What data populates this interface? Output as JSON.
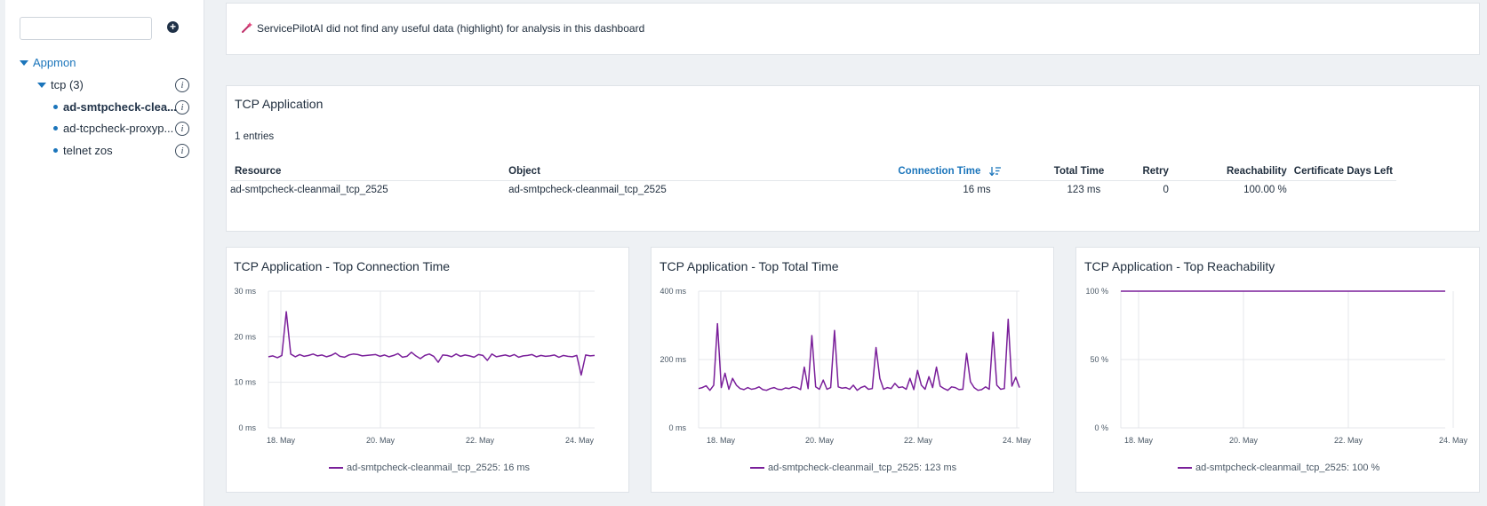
{
  "sidebar": {
    "search": {
      "placeholder": "",
      "value": ""
    },
    "add_label": "+",
    "tree": {
      "root": "Appmon",
      "group": "tcp (3)",
      "items": [
        {
          "label": "ad-smtpcheck-clea..."
        },
        {
          "label": "ad-tcpcheck-proxyp..."
        },
        {
          "label": "telnet zos"
        }
      ],
      "info_glyph": "i"
    }
  },
  "banner": {
    "icon": "magic-wand-icon",
    "text": "ServicePilotAI did not find any useful data (highlight) for analysis in this dashboard"
  },
  "tcp_table": {
    "title": "TCP Application",
    "entries": "1 entries",
    "columns": [
      "Resource",
      "Object",
      "Connection Time",
      "Total Time",
      "Retry",
      "Reachability",
      "Certificate Days Left"
    ],
    "sort_icon": "sort-desc-icon",
    "rows": [
      [
        "ad-smtpcheck-cleanmail_tcp_2525",
        "ad-smtpcheck-cleanmail_tcp_2525",
        "16 ms",
        "123 ms",
        "0",
        "100.00 %",
        ""
      ]
    ]
  },
  "colors": {
    "series": "#7a1f9a",
    "accent": "#1b75bb",
    "grid": "#e4e7eb"
  },
  "chart_data": [
    {
      "type": "line",
      "title": "TCP Application - Top Connection Time",
      "x_ticks": [
        "18. May",
        "20. May",
        "22. May",
        "24. May"
      ],
      "x_range": [
        "17.8 May",
        "25.6 May"
      ],
      "y_ticks": [
        "0 ms",
        "10 ms",
        "20 ms",
        "30 ms"
      ],
      "ylim": [
        0,
        30
      ],
      "grid": true,
      "legend_position": "bottom",
      "series": [
        {
          "name": "ad-smtpcheck-cleanmail_tcp_2525",
          "legend_label": "ad-smtpcheck-cleanmail_tcp_2525: 16 ms",
          "values": [
            15.6,
            15.8,
            15.4,
            15.9,
            25.5,
            16.2,
            15.6,
            16.1,
            15.7,
            15.9,
            16.2,
            15.8,
            16.0,
            15.6,
            15.9,
            16.4,
            15.7,
            15.5,
            16.0,
            16.2,
            16.1,
            15.8,
            15.9,
            16.0,
            16.1,
            15.7,
            16.0,
            15.6,
            15.9,
            16.3,
            15.5,
            15.7,
            16.6,
            15.8,
            15.2,
            15.9,
            16.2,
            15.7,
            14.4,
            16.0,
            15.9,
            15.6,
            16.2,
            15.7,
            16.0,
            15.8,
            15.5,
            16.1,
            15.9,
            14.8,
            16.2,
            15.6,
            15.8,
            16.0,
            15.7,
            16.1,
            15.5,
            15.8,
            15.9,
            16.1,
            15.6,
            15.9,
            15.7,
            15.8,
            16.0,
            15.5,
            15.9,
            15.7,
            15.6,
            15.9,
            11.6,
            16.0,
            15.8,
            15.9
          ]
        }
      ]
    },
    {
      "type": "line",
      "title": "TCP Application - Top Total Time",
      "x_ticks": [
        "18. May",
        "20. May",
        "22. May",
        "24. May"
      ],
      "x_range": [
        "17.8 May",
        "25.6 May"
      ],
      "y_ticks": [
        "0 ms",
        "200 ms",
        "400 ms"
      ],
      "ylim": [
        0,
        400
      ],
      "grid": true,
      "legend_position": "bottom",
      "series": [
        {
          "name": "ad-smtpcheck-cleanmail_tcp_2525",
          "legend_label": "ad-smtpcheck-cleanmail_tcp_2525: 123 ms",
          "values": [
            115,
            118,
            123,
            110,
            125,
            305,
            118,
            160,
            113,
            145,
            125,
            115,
            112,
            118,
            113,
            115,
            120,
            112,
            110,
            115,
            118,
            113,
            112,
            117,
            115,
            120,
            118,
            112,
            178,
            115,
            270,
            120,
            113,
            140,
            113,
            118,
            285,
            120,
            116,
            118,
            113,
            125,
            110,
            118,
            122,
            113,
            115,
            235,
            145,
            113,
            118,
            115,
            130,
            118,
            120,
            113,
            145,
            112,
            168,
            125,
            113,
            150,
            118,
            178,
            122,
            115,
            110,
            120,
            118,
            112,
            113,
            218,
            135,
            118,
            110,
            112,
            120,
            113,
            280,
            125,
            113,
            115,
            318,
            122,
            148,
            118
          ]
        }
      ]
    },
    {
      "type": "line",
      "title": "TCP Application - Top Reachability",
      "x_ticks": [
        "18. May",
        "20. May",
        "22. May",
        "24. May"
      ],
      "x_range": [
        "17.8 May",
        "25.6 May"
      ],
      "y_ticks": [
        "0 %",
        "50 %",
        "100 %"
      ],
      "ylim": [
        0,
        100
      ],
      "grid": true,
      "legend_position": "bottom",
      "series": [
        {
          "name": "ad-smtpcheck-cleanmail_tcp_2525",
          "legend_label": "ad-smtpcheck-cleanmail_tcp_2525: 100 %",
          "values": [
            100,
            100,
            100,
            100,
            100,
            100,
            100,
            100,
            100,
            100,
            100,
            100,
            100,
            100,
            100,
            100,
            100,
            100,
            100,
            100
          ]
        }
      ]
    }
  ]
}
